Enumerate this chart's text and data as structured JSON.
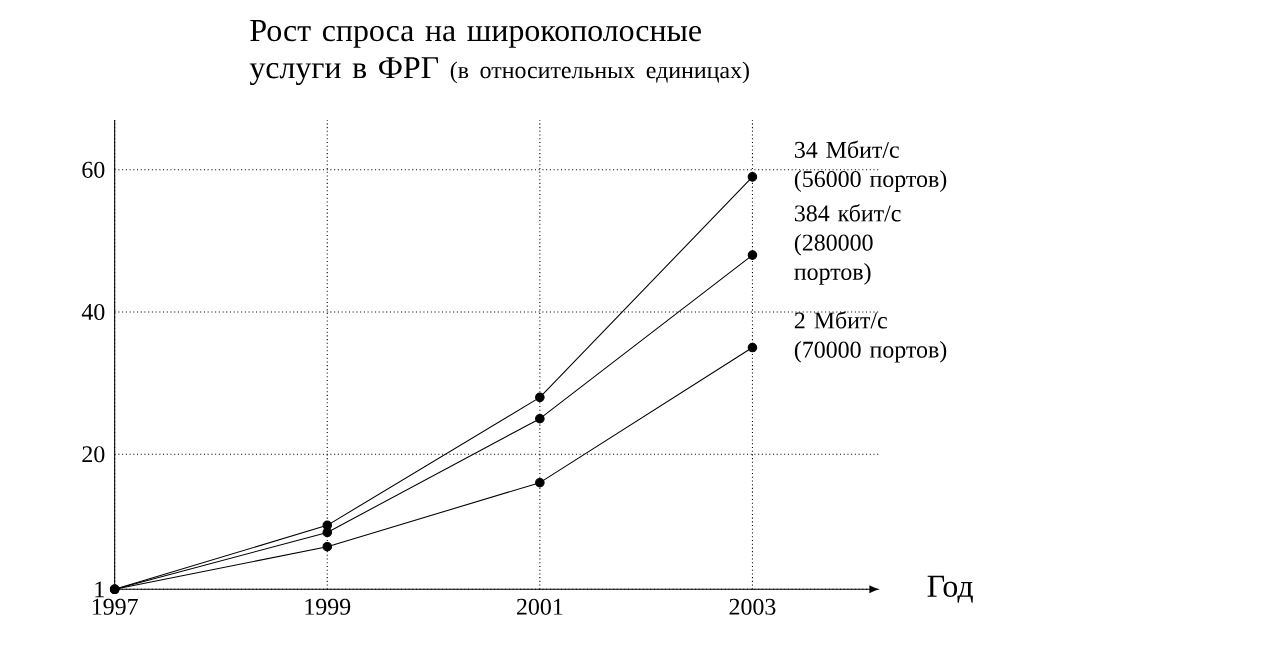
{
  "chart_data": {
    "type": "line",
    "title": "Рост спроса на широкополосные услуги в ФРГ",
    "subtitle": "(в относительных единицах)",
    "xlabel": "Год",
    "x": [
      1997,
      1999,
      2001,
      2003
    ],
    "xlim": [
      1997,
      2004.2
    ],
    "xticks": [
      1997,
      1999,
      2001,
      2003
    ],
    "ylim": [
      1,
      67
    ],
    "yticks": [
      1,
      20,
      40,
      60
    ],
    "grid": true,
    "marker": "circle",
    "line_style": "solid",
    "series": [
      {
        "name": "34 Мбит/с (56000 портов)",
        "color": "#000000",
        "values": [
          1,
          10,
          28,
          59
        ]
      },
      {
        "name": "384 кбит/с (280000 портов)",
        "color": "#000000",
        "values": [
          1,
          9,
          25,
          48
        ]
      },
      {
        "name": "2 Мбит/с (70000 портов)",
        "color": "#000000",
        "values": [
          1,
          7,
          16,
          35
        ]
      }
    ]
  }
}
